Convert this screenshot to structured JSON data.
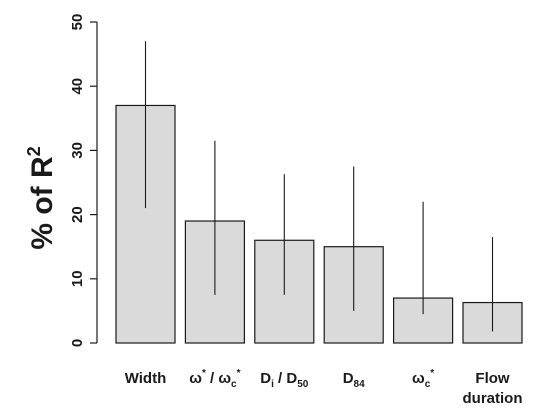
{
  "chart_data": {
    "type": "bar",
    "ylabel": "% of R2",
    "ylim": [
      0,
      50
    ],
    "yticks": [
      0,
      10,
      20,
      30,
      40,
      50
    ],
    "categories": [
      "Width",
      "ω* / ωc*",
      "Di / D50",
      "D84",
      "ωc*",
      "Flow duration"
    ],
    "values": [
      37,
      19,
      16,
      15,
      7,
      6.3
    ],
    "errors": [
      [
        21,
        47
      ],
      [
        7.5,
        31.5
      ],
      [
        7.5,
        26.3
      ],
      [
        5,
        27.5
      ],
      [
        4.5,
        22
      ],
      [
        1.8,
        16.5
      ]
    ],
    "grid": false,
    "colors": {
      "bar_fill": "#dadada",
      "bar_stroke": "#1a1a1a",
      "error_bar": "#1a1a1a"
    }
  }
}
